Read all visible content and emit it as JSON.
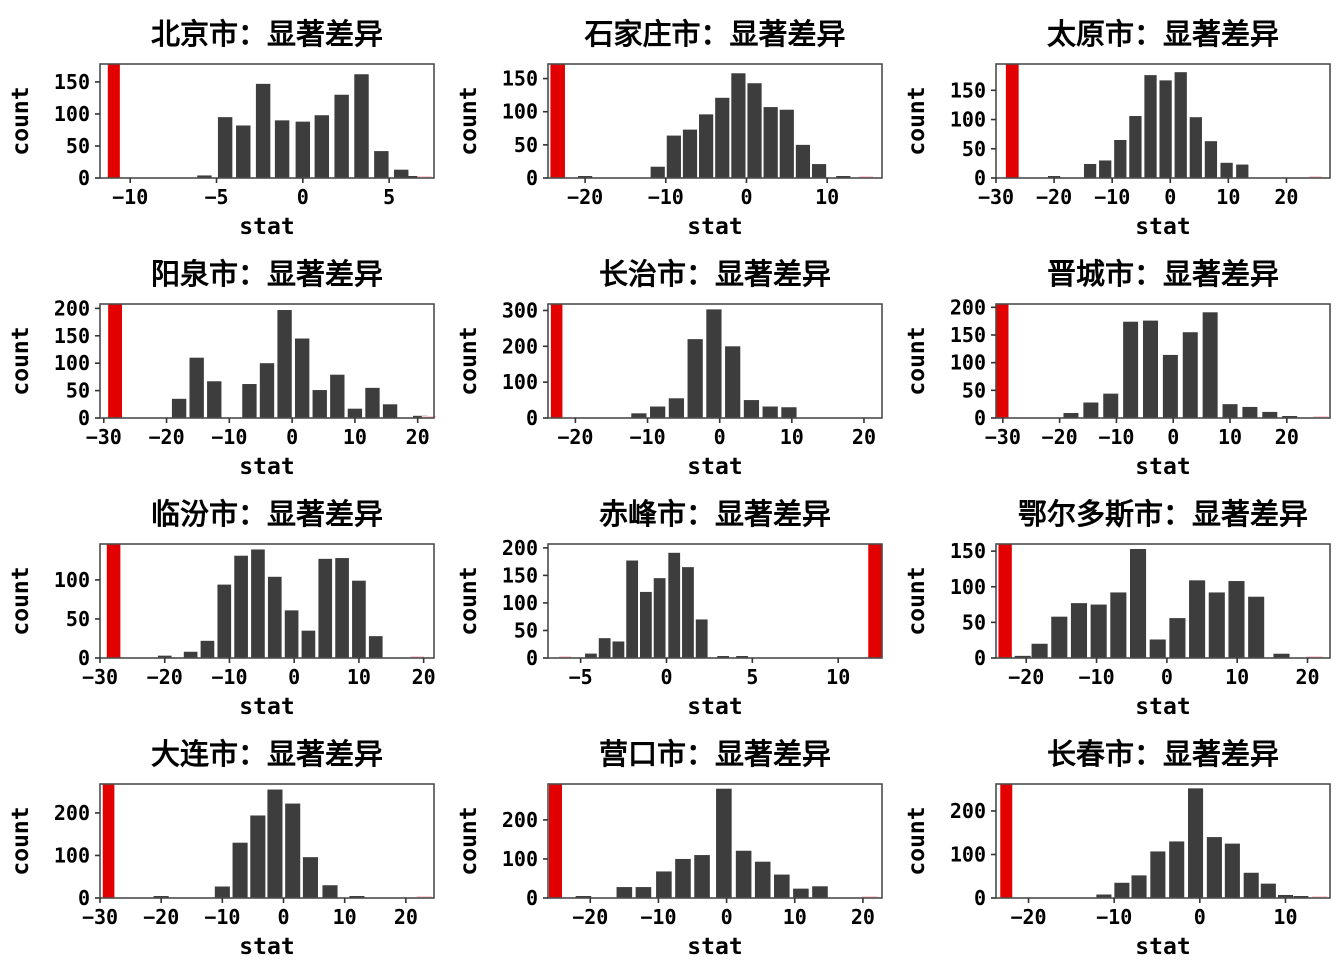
{
  "page": {
    "background": "#ffffff",
    "grid": "4 rows x 3 cols of histograms"
  },
  "colors": {
    "bar": "#3d3d3d",
    "highlight": "#e30000",
    "faint": "#ffccd5",
    "axis": "#4d4d4d",
    "tick": "#333333",
    "text": "#000000"
  },
  "chart_data": [
    {
      "type": "bar",
      "title": "北京市：显著差异",
      "xlabel": "stat",
      "ylabel": "count",
      "xlim": [
        -11.75,
        7.6
      ],
      "ylim": [
        0,
        178
      ],
      "xticks": [
        -10,
        -5,
        0,
        5
      ],
      "xtick_labels": [
        "−10",
        "−5",
        "0",
        "5"
      ],
      "yticks": [
        0,
        50,
        100,
        150
      ],
      "ytick_labels": [
        "0",
        "50",
        "100",
        "150"
      ],
      "bin_width": 0.95,
      "bars": [
        {
          "x": -5.7,
          "count": 4
        },
        {
          "x": -4.5,
          "count": 95
        },
        {
          "x": -3.45,
          "count": 82
        },
        {
          "x": -2.3,
          "count": 147
        },
        {
          "x": -1.2,
          "count": 90
        },
        {
          "x": 0.0,
          "count": 88
        },
        {
          "x": 1.1,
          "count": 98
        },
        {
          "x": 2.25,
          "count": 130
        },
        {
          "x": 3.4,
          "count": 162
        },
        {
          "x": 4.55,
          "count": 42
        },
        {
          "x": 5.7,
          "count": 13
        },
        {
          "x": 6.35,
          "count": 2
        }
      ],
      "highlight_bar": {
        "x": -10.95,
        "width": 0.7,
        "clipped": true
      },
      "faint_bars": [
        {
          "x": 7.05,
          "count": 2
        }
      ]
    },
    {
      "type": "bar",
      "title": "石家庄市：显著差异",
      "xlabel": "stat",
      "ylabel": "count",
      "xlim": [
        -24.6,
        16.8
      ],
      "ylim": [
        0,
        172
      ],
      "xticks": [
        -20,
        -10,
        0,
        10
      ],
      "xtick_labels": [
        "−20",
        "−10",
        "0",
        "10"
      ],
      "yticks": [
        0,
        50,
        100,
        150
      ],
      "ytick_labels": [
        "0",
        "50",
        "100",
        "150"
      ],
      "bin_width": 2.0,
      "bars": [
        {
          "x": -20,
          "count": 3
        },
        {
          "x": -11,
          "count": 17
        },
        {
          "x": -9,
          "count": 64
        },
        {
          "x": -7,
          "count": 73
        },
        {
          "x": -5,
          "count": 96
        },
        {
          "x": -3,
          "count": 121
        },
        {
          "x": -1,
          "count": 158
        },
        {
          "x": 1,
          "count": 143
        },
        {
          "x": 3,
          "count": 107
        },
        {
          "x": 5,
          "count": 103
        },
        {
          "x": 7,
          "count": 50
        },
        {
          "x": 9,
          "count": 21
        },
        {
          "x": 12,
          "count": 3
        }
      ],
      "highlight_bar": {
        "x": -23.4,
        "width": 1.8,
        "clipped": true
      },
      "faint_bars": [
        {
          "x": 14.8,
          "count": 3
        }
      ]
    },
    {
      "type": "bar",
      "title": "太原市：显著差异",
      "xlabel": "stat",
      "ylabel": "count",
      "xlim": [
        -30,
        27.5
      ],
      "ylim": [
        0,
        195
      ],
      "xticks": [
        -30,
        -20,
        -10,
        0,
        10,
        20
      ],
      "xtick_labels": [
        "−30",
        "−20",
        "−10",
        "0",
        "10",
        "20"
      ],
      "yticks": [
        0,
        50,
        100,
        150
      ],
      "ytick_labels": [
        "0",
        "50",
        "100",
        "150"
      ],
      "bin_width": 2.4,
      "bars": [
        {
          "x": -20,
          "count": 3
        },
        {
          "x": -13.8,
          "count": 24
        },
        {
          "x": -11.2,
          "count": 30
        },
        {
          "x": -8.6,
          "count": 65
        },
        {
          "x": -6,
          "count": 106
        },
        {
          "x": -3.4,
          "count": 176
        },
        {
          "x": -0.8,
          "count": 167
        },
        {
          "x": 1.8,
          "count": 181
        },
        {
          "x": 4.4,
          "count": 104
        },
        {
          "x": 7,
          "count": 63
        },
        {
          "x": 9.7,
          "count": 26
        },
        {
          "x": 12.4,
          "count": 23
        }
      ],
      "highlight_bar": {
        "x": -27.2,
        "width": 2.2,
        "clipped": true
      },
      "faint_bars": [
        {
          "x": 25,
          "count": 3
        }
      ]
    },
    {
      "type": "bar",
      "title": "阳泉市：显著差异",
      "xlabel": "stat",
      "ylabel": "count",
      "xlim": [
        -30.6,
        22.6
      ],
      "ylim": [
        0,
        208
      ],
      "xticks": [
        -30,
        -20,
        -10,
        0,
        10,
        20
      ],
      "xtick_labels": [
        "−30",
        "−20",
        "−10",
        "0",
        "10",
        "20"
      ],
      "yticks": [
        0,
        50,
        100,
        150,
        200
      ],
      "ytick_labels": [
        "0",
        "50",
        "100",
        "150",
        "200"
      ],
      "bin_width": 2.6,
      "bars": [
        {
          "x": -18,
          "count": 35
        },
        {
          "x": -15.2,
          "count": 110
        },
        {
          "x": -12.4,
          "count": 67
        },
        {
          "x": -6.8,
          "count": 62
        },
        {
          "x": -4,
          "count": 100
        },
        {
          "x": -1.2,
          "count": 197
        },
        {
          "x": 1.6,
          "count": 145
        },
        {
          "x": 4.4,
          "count": 51
        },
        {
          "x": 7.2,
          "count": 79
        },
        {
          "x": 10,
          "count": 17
        },
        {
          "x": 12.8,
          "count": 55
        },
        {
          "x": 15.6,
          "count": 25
        },
        {
          "x": 20.4,
          "count": 4
        }
      ],
      "highlight_bar": {
        "x": -28.2,
        "width": 2.2,
        "clipped": true
      },
      "faint_bars": [
        {
          "x": 21.8,
          "count": 2
        }
      ]
    },
    {
      "type": "bar",
      "title": "长治市：显著差异",
      "xlabel": "stat",
      "ylabel": "count",
      "xlim": [
        -23.8,
        22.5
      ],
      "ylim": [
        0,
        318
      ],
      "xticks": [
        -20,
        -10,
        0,
        10,
        20
      ],
      "xtick_labels": [
        "−20",
        "−10",
        "0",
        "10",
        "20"
      ],
      "yticks": [
        0,
        100,
        200,
        300
      ],
      "ytick_labels": [
        "0",
        "100",
        "200",
        "300"
      ],
      "bin_width": 2.4,
      "bars": [
        {
          "x": -11.2,
          "count": 13
        },
        {
          "x": -8.6,
          "count": 32
        },
        {
          "x": -6,
          "count": 55
        },
        {
          "x": -3.4,
          "count": 220
        },
        {
          "x": -0.8,
          "count": 303
        },
        {
          "x": 1.8,
          "count": 200
        },
        {
          "x": 4.4,
          "count": 50
        },
        {
          "x": 7,
          "count": 32
        },
        {
          "x": 9.6,
          "count": 30
        }
      ],
      "highlight_bar": {
        "x": -22.6,
        "width": 1.6,
        "clipped": true
      },
      "faint_bars": []
    },
    {
      "type": "bar",
      "title": "晋城市：显著差异",
      "xlabel": "stat",
      "ylabel": "count",
      "xlim": [
        -31.2,
        27.6
      ],
      "ylim": [
        0,
        206
      ],
      "xticks": [
        -30,
        -20,
        -10,
        0,
        10,
        20
      ],
      "xtick_labels": [
        "−30",
        "−20",
        "−10",
        "0",
        "10",
        "20"
      ],
      "yticks": [
        0,
        50,
        100,
        150,
        200
      ],
      "ytick_labels": [
        "0",
        "50",
        "100",
        "150",
        "200"
      ],
      "bin_width": 3.0,
      "bars": [
        {
          "x": -18,
          "count": 9
        },
        {
          "x": -14.5,
          "count": 28
        },
        {
          "x": -11,
          "count": 44
        },
        {
          "x": -7.5,
          "count": 174
        },
        {
          "x": -4,
          "count": 176
        },
        {
          "x": -0.5,
          "count": 114
        },
        {
          "x": 3,
          "count": 155
        },
        {
          "x": 6.5,
          "count": 191
        },
        {
          "x": 10,
          "count": 25
        },
        {
          "x": 13.5,
          "count": 20
        },
        {
          "x": 17,
          "count": 11
        },
        {
          "x": 20.5,
          "count": 2
        }
      ],
      "highlight_bar": {
        "x": -30.1,
        "width": 2.2,
        "clipped": true
      },
      "faint_bars": [
        {
          "x": 26,
          "count": 2
        }
      ]
    },
    {
      "type": "bar",
      "title": "临汾市：显著差异",
      "xlabel": "stat",
      "ylabel": "count",
      "xlim": [
        -30,
        21.6
      ],
      "ylim": [
        0,
        146
      ],
      "xticks": [
        -30,
        -20,
        -10,
        0,
        10,
        20
      ],
      "xtick_labels": [
        "−30",
        "−20",
        "−10",
        "0",
        "10",
        "20"
      ],
      "yticks": [
        0,
        50,
        100
      ],
      "ytick_labels": [
        "0",
        "50",
        "100"
      ],
      "bin_width": 2.4,
      "bars": [
        {
          "x": -20,
          "count": 3
        },
        {
          "x": -16,
          "count": 8
        },
        {
          "x": -13.4,
          "count": 22
        },
        {
          "x": -10.8,
          "count": 94
        },
        {
          "x": -8.2,
          "count": 131
        },
        {
          "x": -5.6,
          "count": 139
        },
        {
          "x": -3,
          "count": 104
        },
        {
          "x": -0.4,
          "count": 61
        },
        {
          "x": 2.2,
          "count": 35
        },
        {
          "x": 4.8,
          "count": 127
        },
        {
          "x": 7.4,
          "count": 128
        },
        {
          "x": 10,
          "count": 99
        },
        {
          "x": 12.6,
          "count": 28
        }
      ],
      "highlight_bar": {
        "x": -27.9,
        "width": 2.1,
        "clipped": true
      },
      "faint_bars": [
        {
          "x": 19,
          "count": 2
        }
      ]
    },
    {
      "type": "bar",
      "title": "赤峰市：显著差异",
      "xlabel": "stat",
      "ylabel": "count",
      "xlim": [
        -6.9,
        12.55
      ],
      "ylim": [
        0,
        207
      ],
      "xticks": [
        -5,
        0,
        5,
        10
      ],
      "xtick_labels": [
        "−5",
        "0",
        "5",
        "10"
      ],
      "yticks": [
        0,
        50,
        100,
        150,
        200
      ],
      "ytick_labels": [
        "0",
        "50",
        "100",
        "150",
        "200"
      ],
      "bin_width": 0.78,
      "bars": [
        {
          "x": -4.4,
          "count": 8
        },
        {
          "x": -3.6,
          "count": 36
        },
        {
          "x": -2.8,
          "count": 30
        },
        {
          "x": -2.0,
          "count": 177
        },
        {
          "x": -1.2,
          "count": 120
        },
        {
          "x": -0.4,
          "count": 145
        },
        {
          "x": 0.45,
          "count": 191
        },
        {
          "x": 1.25,
          "count": 165
        },
        {
          "x": 2.05,
          "count": 70
        },
        {
          "x": 3.3,
          "count": 3
        },
        {
          "x": 4.4,
          "count": 3
        }
      ],
      "highlight_bar": {
        "x": 12.15,
        "width": 0.8,
        "clipped": true
      },
      "faint_bars": [
        {
          "x": -5.9,
          "count": 2
        }
      ]
    },
    {
      "type": "bar",
      "title": "鄂尔多斯市：显著差异",
      "xlabel": "stat",
      "ylabel": "count",
      "xlim": [
        -24.3,
        23.2
      ],
      "ylim": [
        0,
        160
      ],
      "xticks": [
        -20,
        -10,
        0,
        10,
        20
      ],
      "xtick_labels": [
        "−20",
        "−10",
        "0",
        "10",
        "20"
      ],
      "yticks": [
        0,
        50,
        100,
        150
      ],
      "ytick_labels": [
        "0",
        "50",
        "100",
        "150"
      ],
      "bin_width": 2.6,
      "bars": [
        {
          "x": -20.5,
          "count": 3
        },
        {
          "x": -18.1,
          "count": 20
        },
        {
          "x": -15.3,
          "count": 58
        },
        {
          "x": -12.5,
          "count": 77
        },
        {
          "x": -9.7,
          "count": 75
        },
        {
          "x": -6.9,
          "count": 92
        },
        {
          "x": -4.1,
          "count": 153
        },
        {
          "x": -1.3,
          "count": 26
        },
        {
          "x": 1.5,
          "count": 56
        },
        {
          "x": 4.3,
          "count": 109
        },
        {
          "x": 7.1,
          "count": 92
        },
        {
          "x": 9.9,
          "count": 108
        },
        {
          "x": 12.7,
          "count": 86
        },
        {
          "x": 16.3,
          "count": 6
        }
      ],
      "highlight_bar": {
        "x": -23.0,
        "width": 1.9,
        "clipped": true
      },
      "faint_bars": [
        {
          "x": 21,
          "count": 2
        }
      ]
    },
    {
      "type": "bar",
      "title": "大连市：显著差异",
      "xlabel": "stat",
      "ylabel": "count",
      "xlim": [
        -30,
        24.6
      ],
      "ylim": [
        0,
        268
      ],
      "xticks": [
        -30,
        -20,
        -10,
        0,
        10,
        20
      ],
      "xtick_labels": [
        "−30",
        "−20",
        "−10",
        "0",
        "10",
        "20"
      ],
      "yticks": [
        0,
        100,
        200
      ],
      "ytick_labels": [
        "0",
        "100",
        "200"
      ],
      "bin_width": 2.8,
      "bars": [
        {
          "x": -20,
          "count": 3
        },
        {
          "x": -10,
          "count": 27
        },
        {
          "x": -7.1,
          "count": 130
        },
        {
          "x": -4.2,
          "count": 194
        },
        {
          "x": -1.4,
          "count": 255
        },
        {
          "x": 1.5,
          "count": 222
        },
        {
          "x": 4.4,
          "count": 96
        },
        {
          "x": 7.6,
          "count": 30
        },
        {
          "x": 12,
          "count": 3
        }
      ],
      "highlight_bar": {
        "x": -28.6,
        "width": 1.9,
        "clipped": true
      },
      "faint_bars": [
        {
          "x": 23,
          "count": 2
        }
      ]
    },
    {
      "type": "bar",
      "title": "营口市：显著差异",
      "xlabel": "stat",
      "ylabel": "count",
      "xlim": [
        -26.2,
        22.8
      ],
      "ylim": [
        0,
        292
      ],
      "xticks": [
        -20,
        -10,
        0,
        10,
        20
      ],
      "xtick_labels": [
        "−20",
        "−10",
        "0",
        "10",
        "20"
      ],
      "yticks": [
        0,
        100,
        200
      ],
      "ytick_labels": [
        "0",
        "100",
        "200"
      ],
      "bin_width": 2.6,
      "bars": [
        {
          "x": -21,
          "count": 2
        },
        {
          "x": -15,
          "count": 28
        },
        {
          "x": -12.2,
          "count": 28
        },
        {
          "x": -9.2,
          "count": 68
        },
        {
          "x": -6.4,
          "count": 100
        },
        {
          "x": -3.6,
          "count": 110
        },
        {
          "x": -0.4,
          "count": 280
        },
        {
          "x": 2.5,
          "count": 121
        },
        {
          "x": 5.3,
          "count": 93
        },
        {
          "x": 8.1,
          "count": 60
        },
        {
          "x": 10.9,
          "count": 24
        },
        {
          "x": 13.7,
          "count": 30
        }
      ],
      "highlight_bar": {
        "x": -25.1,
        "width": 1.9,
        "clipped": true
      },
      "faint_bars": [
        {
          "x": 21,
          "count": 2
        }
      ]
    },
    {
      "type": "bar",
      "title": "长春市：显著差异",
      "xlabel": "stat",
      "ylabel": "count",
      "xlim": [
        -23.8,
        15.2
      ],
      "ylim": [
        0,
        262
      ],
      "xticks": [
        -20,
        -10,
        0,
        10
      ],
      "xtick_labels": [
        "−20",
        "−10",
        "0",
        "10"
      ],
      "yticks": [
        0,
        100,
        200
      ],
      "ytick_labels": [
        "0",
        "100",
        "200"
      ],
      "bin_width": 2.0,
      "bars": [
        {
          "x": -11.2,
          "count": 8
        },
        {
          "x": -9.1,
          "count": 35
        },
        {
          "x": -7.1,
          "count": 52
        },
        {
          "x": -4.9,
          "count": 107
        },
        {
          "x": -2.7,
          "count": 130
        },
        {
          "x": -0.5,
          "count": 252
        },
        {
          "x": 1.7,
          "count": 140
        },
        {
          "x": 3.8,
          "count": 125
        },
        {
          "x": 6.0,
          "count": 58
        },
        {
          "x": 8.0,
          "count": 33
        },
        {
          "x": 10.0,
          "count": 7
        },
        {
          "x": 11.8,
          "count": 3
        }
      ],
      "highlight_bar": {
        "x": -22.6,
        "width": 1.4,
        "clipped": true
      },
      "faint_bars": [
        {
          "x": 14,
          "count": 2
        }
      ]
    }
  ]
}
